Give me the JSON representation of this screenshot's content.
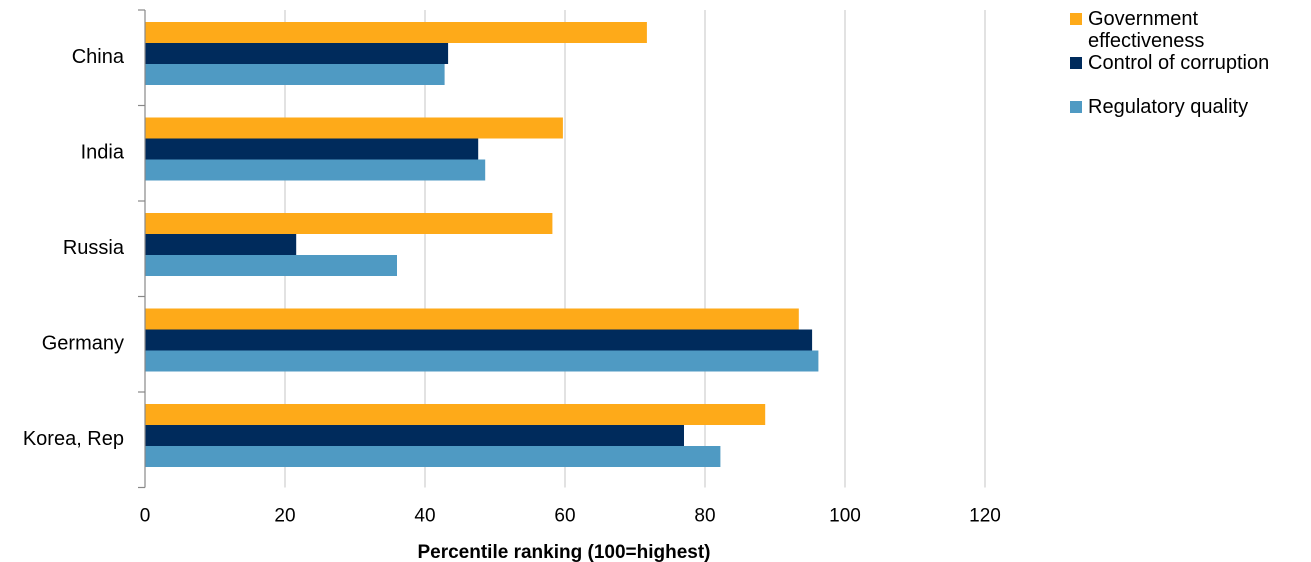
{
  "chart_data": {
    "type": "bar",
    "orientation": "horizontal",
    "categories": [
      "China",
      "India",
      "Russia",
      "Germany",
      "Korea, Rep"
    ],
    "series": [
      {
        "name": "Government effectiveness",
        "color": "#FEAA19",
        "values": [
          71.7,
          59.7,
          58.2,
          93.4,
          88.6
        ]
      },
      {
        "name": "Control of corruption",
        "color": "#002B5C",
        "values": [
          43.3,
          47.6,
          21.6,
          95.3,
          77.0
        ]
      },
      {
        "name": "Regulatory quality",
        "color": "#4F9AC3",
        "values": [
          42.8,
          48.6,
          36.0,
          96.2,
          82.2
        ]
      }
    ],
    "xlabel": "Percentile ranking (100=highest)",
    "ylabel": "",
    "xlim": [
      0,
      120
    ],
    "xticks": [
      "0",
      "20",
      "40",
      "60",
      "80",
      "100",
      "120"
    ],
    "grid": true,
    "legend_position": "top-right"
  },
  "legend": {
    "items": [
      {
        "label": "Government effectiveness",
        "color": "#FEAA19"
      },
      {
        "label": "Control of corruption",
        "color": "#002B5C"
      },
      {
        "label": "Regulatory quality",
        "color": "#4F9AC3"
      }
    ]
  }
}
